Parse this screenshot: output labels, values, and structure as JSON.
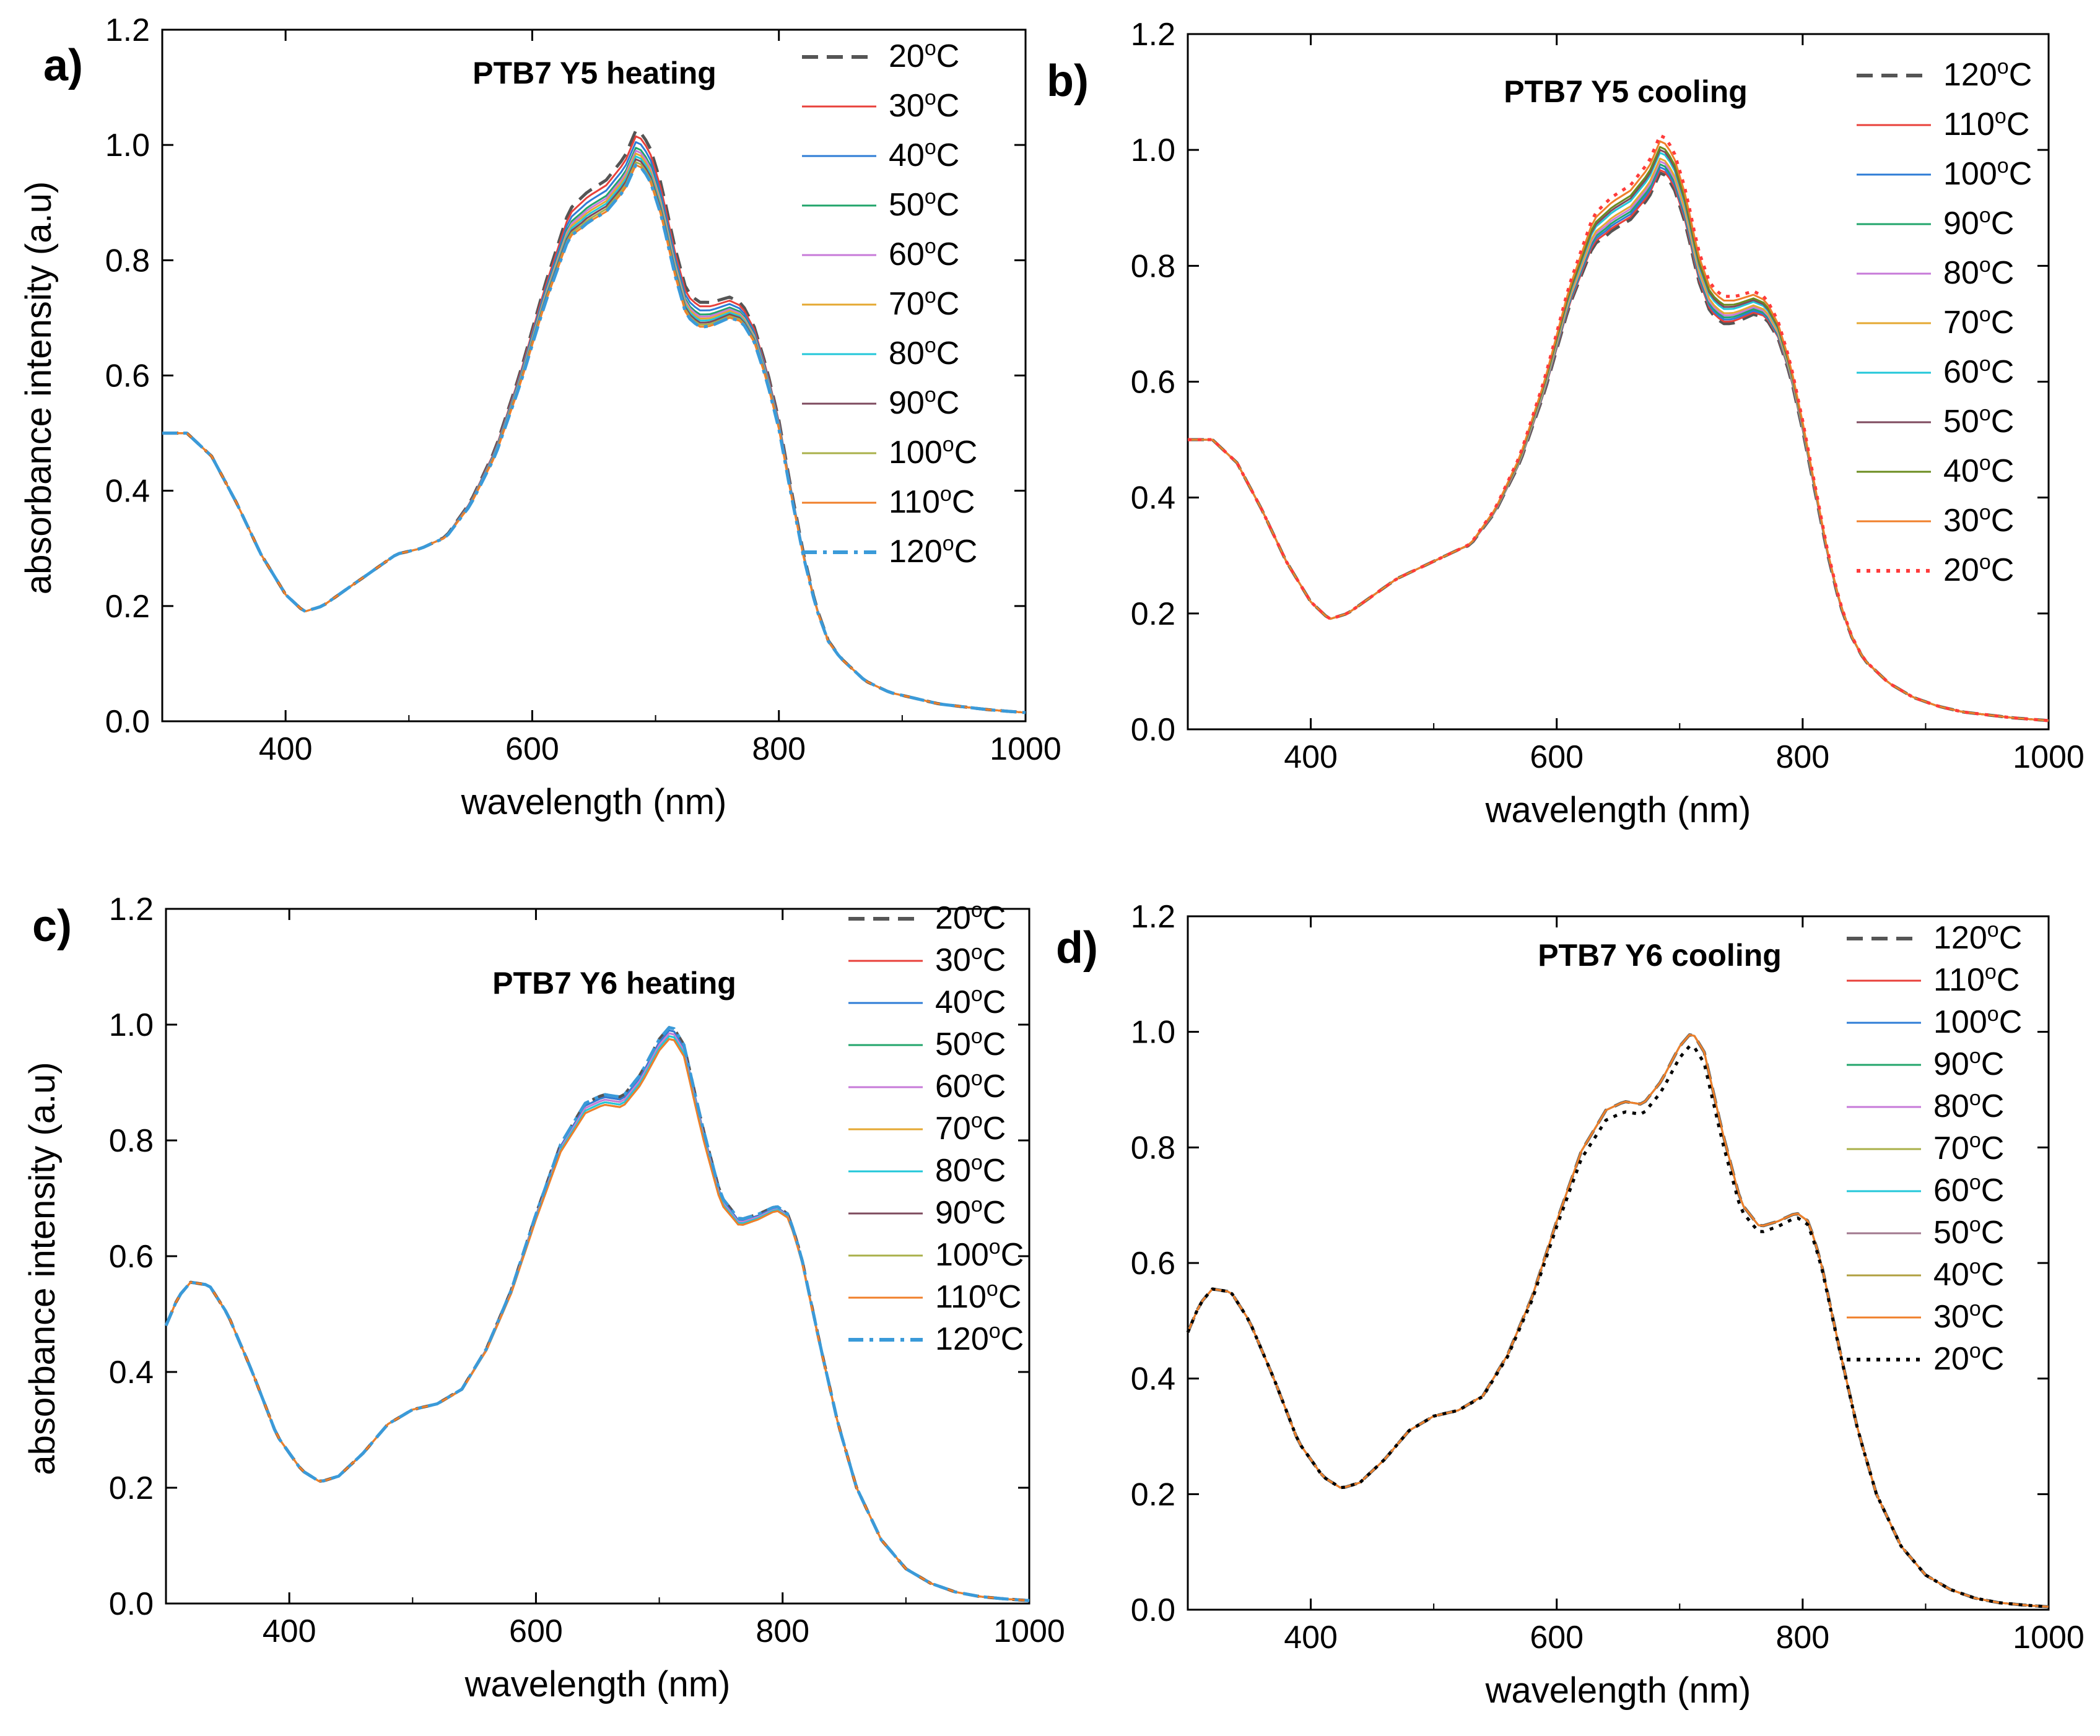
{
  "figure": {
    "description_panels": [
      "a)",
      "b)",
      "c)",
      "d)"
    ]
  },
  "chart_data": [
    {
      "type": "line",
      "panel": "a)",
      "title": "PTB7 Y5 heating",
      "xlabel": "wavelength (nm)",
      "ylabel": "absorbance intensity (a.u)",
      "xlim": [
        300,
        1000
      ],
      "ylim": [
        0,
        1.2
      ],
      "xticks": [
        "400",
        "600",
        "800",
        "1000"
      ],
      "yticks": [
        "0.0",
        "0.2",
        "0.4",
        "0.6",
        "0.8",
        "1.0",
        "1.2"
      ],
      "base_profile": {
        "x": [
          300,
          320,
          340,
          360,
          380,
          400,
          415,
          430,
          450,
          470,
          490,
          510,
          530,
          550,
          570,
          590,
          610,
          630,
          645,
          660,
          675,
          685,
          695,
          705,
          715,
          725,
          735,
          745,
          760,
          770,
          780,
          790,
          800,
          810,
          820,
          830,
          840,
          850,
          870,
          890,
          910,
          930,
          950,
          970,
          1000
        ],
        "y": [
          0.5,
          0.5,
          0.46,
          0.38,
          0.29,
          0.22,
          0.19,
          0.2,
          0.23,
          0.26,
          0.29,
          0.3,
          0.32,
          0.38,
          0.47,
          0.6,
          0.75,
          0.88,
          0.91,
          0.93,
          0.97,
          1.02,
          0.99,
          0.92,
          0.82,
          0.74,
          0.72,
          0.72,
          0.73,
          0.72,
          0.68,
          0.61,
          0.52,
          0.4,
          0.29,
          0.2,
          0.14,
          0.11,
          0.07,
          0.05,
          0.04,
          0.03,
          0.025,
          0.02,
          0.015
        ]
      },
      "series": [
        {
          "name": "20°C",
          "color": "#555555",
          "style": "dashed",
          "peak": 1.03
        },
        {
          "name": "30°C",
          "color": "#e8403a",
          "style": "solid",
          "peak": 1.02
        },
        {
          "name": "40°C",
          "color": "#2e7cd6",
          "style": "solid",
          "peak": 1.01
        },
        {
          "name": "50°C",
          "color": "#22a56b",
          "style": "solid",
          "peak": 1.0
        },
        {
          "name": "60°C",
          "color": "#c77ad9",
          "style": "solid",
          "peak": 0.995
        },
        {
          "name": "70°C",
          "color": "#e5a832",
          "style": "solid",
          "peak": 0.99
        },
        {
          "name": "80°C",
          "color": "#22c7d9",
          "style": "solid",
          "peak": 0.985
        },
        {
          "name": "90°C",
          "color": "#7d4a5e",
          "style": "solid",
          "peak": 0.98
        },
        {
          "name": "100°C",
          "color": "#a9b04a",
          "style": "solid",
          "peak": 0.975
        },
        {
          "name": "110°C",
          "color": "#f07f2a",
          "style": "solid",
          "peak": 0.97
        },
        {
          "name": "120°C",
          "color": "#3a9ad9",
          "style": "dashdot",
          "peak": 0.97
        }
      ]
    },
    {
      "type": "line",
      "panel": "b)",
      "title": "PTB7 Y5 cooling",
      "xlabel": "wavelength (nm)",
      "ylabel": "",
      "xlim": [
        300,
        1000
      ],
      "ylim": [
        0,
        1.2
      ],
      "xticks": [
        "400",
        "600",
        "800",
        "1000"
      ],
      "yticks": [
        "0.0",
        "0.2",
        "0.4",
        "0.6",
        "0.8",
        "1.0",
        "1.2"
      ],
      "base_profile": {
        "x": [
          300,
          320,
          340,
          360,
          380,
          400,
          415,
          430,
          450,
          470,
          490,
          510,
          530,
          550,
          570,
          590,
          610,
          630,
          645,
          660,
          675,
          685,
          695,
          705,
          715,
          725,
          735,
          745,
          760,
          770,
          780,
          790,
          800,
          810,
          820,
          830,
          840,
          850,
          870,
          890,
          910,
          930,
          950,
          970,
          1000
        ],
        "y": [
          0.5,
          0.5,
          0.46,
          0.38,
          0.29,
          0.22,
          0.19,
          0.2,
          0.23,
          0.26,
          0.28,
          0.3,
          0.32,
          0.38,
          0.47,
          0.6,
          0.76,
          0.88,
          0.91,
          0.93,
          0.97,
          1.02,
          0.99,
          0.92,
          0.82,
          0.76,
          0.74,
          0.74,
          0.75,
          0.74,
          0.7,
          0.63,
          0.53,
          0.42,
          0.31,
          0.22,
          0.16,
          0.12,
          0.08,
          0.055,
          0.04,
          0.03,
          0.025,
          0.02,
          0.015
        ]
      },
      "series": [
        {
          "name": "120°C",
          "color": "#555555",
          "style": "dashed",
          "peak": 0.965
        },
        {
          "name": "110°C",
          "color": "#e8403a",
          "style": "solid",
          "peak": 0.97
        },
        {
          "name": "100°C",
          "color": "#2e7cd6",
          "style": "solid",
          "peak": 0.975
        },
        {
          "name": "90°C",
          "color": "#22a56b",
          "style": "solid",
          "peak": 0.98
        },
        {
          "name": "80°C",
          "color": "#c77ad9",
          "style": "solid",
          "peak": 0.985
        },
        {
          "name": "70°C",
          "color": "#e5a832",
          "style": "solid",
          "peak": 0.99
        },
        {
          "name": "60°C",
          "color": "#22c7d9",
          "style": "solid",
          "peak": 1.0
        },
        {
          "name": "50°C",
          "color": "#7d4a5e",
          "style": "solid",
          "peak": 1.005
        },
        {
          "name": "40°C",
          "color": "#6b8c1f",
          "style": "solid",
          "peak": 1.01
        },
        {
          "name": "30°C",
          "color": "#f07f2a",
          "style": "solid",
          "peak": 1.02
        },
        {
          "name": "20°C",
          "color": "#ff3b3b",
          "style": "dotted",
          "peak": 1.03
        }
      ]
    },
    {
      "type": "line",
      "panel": "c)",
      "title": "PTB7 Y6 heating",
      "xlabel": "wavelength (nm)",
      "ylabel": "absorbance intensity (a.u)",
      "xlim": [
        300,
        1000
      ],
      "ylim": [
        0,
        1.2
      ],
      "xticks": [
        "400",
        "600",
        "800",
        "1000"
      ],
      "yticks": [
        "0.0",
        "0.2",
        "0.4",
        "0.6",
        "0.8",
        "1.0",
        "1.2"
      ],
      "base_profile": {
        "x": [
          300,
          310,
          320,
          335,
          350,
          370,
          390,
          410,
          425,
          440,
          460,
          480,
          500,
          520,
          540,
          560,
          580,
          600,
          620,
          640,
          655,
          670,
          685,
          700,
          710,
          720,
          735,
          750,
          765,
          780,
          795,
          805,
          815,
          830,
          845,
          860,
          880,
          900,
          920,
          940,
          960,
          980,
          1000
        ],
        "y": [
          0.48,
          0.53,
          0.555,
          0.55,
          0.5,
          0.4,
          0.29,
          0.23,
          0.21,
          0.22,
          0.26,
          0.31,
          0.335,
          0.345,
          0.37,
          0.44,
          0.54,
          0.67,
          0.79,
          0.86,
          0.875,
          0.87,
          0.91,
          0.97,
          0.995,
          0.96,
          0.82,
          0.7,
          0.66,
          0.67,
          0.685,
          0.67,
          0.6,
          0.45,
          0.31,
          0.2,
          0.11,
          0.06,
          0.035,
          0.02,
          0.012,
          0.008,
          0.005
        ]
      },
      "series": [
        {
          "name": "20°C",
          "color": "#555555",
          "style": "dashed",
          "peak": 1.0
        },
        {
          "name": "30°C",
          "color": "#e8403a",
          "style": "solid",
          "peak": 0.995
        },
        {
          "name": "40°C",
          "color": "#2e7cd6",
          "style": "solid",
          "peak": 0.995
        },
        {
          "name": "50°C",
          "color": "#22a56b",
          "style": "solid",
          "peak": 0.99
        },
        {
          "name": "60°C",
          "color": "#c77ad9",
          "style": "solid",
          "peak": 0.99
        },
        {
          "name": "70°C",
          "color": "#e5a832",
          "style": "solid",
          "peak": 0.985
        },
        {
          "name": "80°C",
          "color": "#22c7d9",
          "style": "solid",
          "peak": 0.985
        },
        {
          "name": "90°C",
          "color": "#7d4a5e",
          "style": "solid",
          "peak": 0.98
        },
        {
          "name": "100°C",
          "color": "#a9b04a",
          "style": "solid",
          "peak": 0.98
        },
        {
          "name": "110°C",
          "color": "#f07f2a",
          "style": "solid",
          "peak": 0.98
        },
        {
          "name": "120°C",
          "color": "#3a9ad9",
          "style": "dashdot",
          "peak": 1.0
        }
      ]
    },
    {
      "type": "line",
      "panel": "d)",
      "title": "PTB7 Y6 cooling",
      "xlabel": "wavelength (nm)",
      "ylabel": "",
      "xlim": [
        300,
        1000
      ],
      "ylim": [
        0,
        1.2
      ],
      "xticks": [
        "400",
        "600",
        "800",
        "1000"
      ],
      "yticks": [
        "0.0",
        "0.2",
        "0.4",
        "0.6",
        "0.8",
        "1.0",
        "1.2"
      ],
      "base_profile": {
        "x": [
          300,
          310,
          320,
          335,
          350,
          370,
          390,
          410,
          425,
          440,
          460,
          480,
          500,
          520,
          540,
          560,
          580,
          600,
          620,
          640,
          655,
          670,
          685,
          700,
          710,
          720,
          735,
          750,
          765,
          780,
          795,
          805,
          815,
          830,
          845,
          860,
          880,
          900,
          920,
          940,
          960,
          980,
          1000
        ],
        "y": [
          0.48,
          0.53,
          0.555,
          0.55,
          0.5,
          0.4,
          0.29,
          0.23,
          0.21,
          0.22,
          0.26,
          0.31,
          0.335,
          0.345,
          0.37,
          0.44,
          0.54,
          0.67,
          0.79,
          0.86,
          0.875,
          0.87,
          0.91,
          0.97,
          0.995,
          0.96,
          0.82,
          0.7,
          0.66,
          0.67,
          0.685,
          0.67,
          0.6,
          0.45,
          0.31,
          0.2,
          0.11,
          0.06,
          0.035,
          0.02,
          0.012,
          0.008,
          0.005
        ]
      },
      "series": [
        {
          "name": "120°C",
          "color": "#555555",
          "style": "dashed",
          "peak": 1.0
        },
        {
          "name": "110°C",
          "color": "#e8403a",
          "style": "solid",
          "peak": 1.0
        },
        {
          "name": "100°C",
          "color": "#2e7cd6",
          "style": "solid",
          "peak": 1.0
        },
        {
          "name": "90°C",
          "color": "#22a56b",
          "style": "solid",
          "peak": 1.0
        },
        {
          "name": "80°C",
          "color": "#c77ad9",
          "style": "solid",
          "peak": 1.0
        },
        {
          "name": "70°C",
          "color": "#a9b04a",
          "style": "solid",
          "peak": 1.0
        },
        {
          "name": "60°C",
          "color": "#22c7d9",
          "style": "solid",
          "peak": 1.0
        },
        {
          "name": "50°C",
          "color": "#a0788e",
          "style": "solid",
          "peak": 1.0
        },
        {
          "name": "40°C",
          "color": "#b0a040",
          "style": "solid",
          "peak": 1.0
        },
        {
          "name": "30°C",
          "color": "#f07f2a",
          "style": "solid",
          "peak": 1.0
        },
        {
          "name": "20°C",
          "color": "#000000",
          "style": "dotted",
          "peak": 0.98
        }
      ]
    }
  ]
}
